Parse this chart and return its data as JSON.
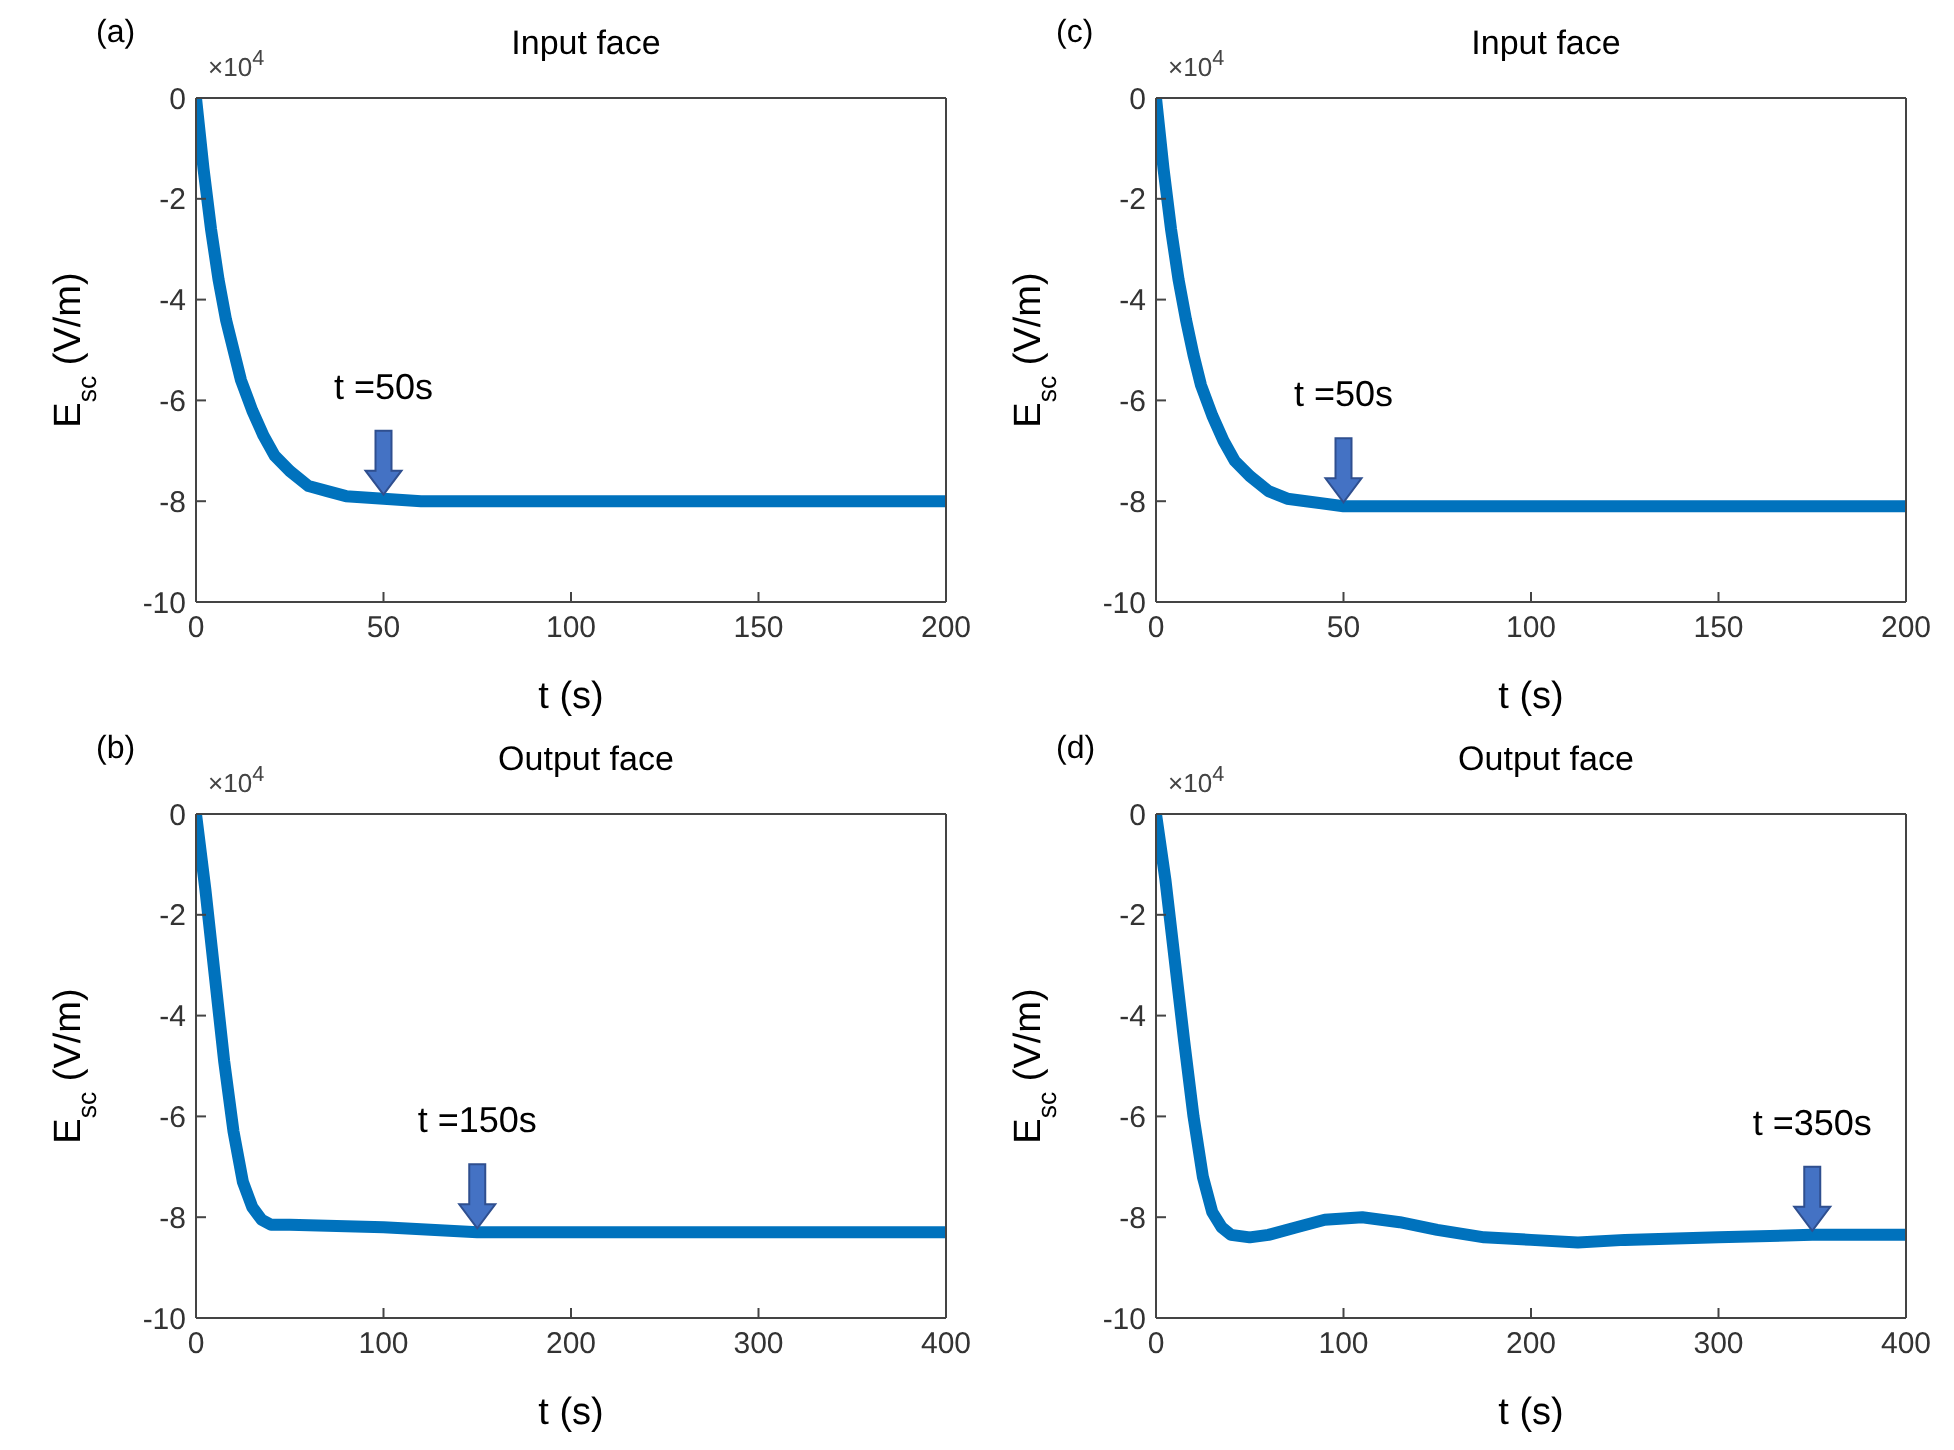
{
  "chart_data": [
    {
      "type": "line",
      "title": "Input face",
      "xlabel": "t (s)",
      "ylabel": "E$_{sc}$ (V/m)",
      "annotations": [
        "(a)",
        "×10$^{4}$",
        {
          "text": "t =50s",
          "x": 50,
          "y": -7.95
        }
      ],
      "x": [
        0,
        2,
        4,
        6,
        8,
        10,
        12,
        15,
        18,
        21,
        25,
        30,
        35,
        40,
        50,
        60,
        100,
        150,
        200
      ],
      "series": [
        {
          "color": "#0072bd",
          "values": [
            0,
            -1.4,
            -2.6,
            -3.6,
            -4.4,
            -5.0,
            -5.6,
            -6.2,
            -6.7,
            -7.1,
            -7.4,
            -7.7,
            -7.8,
            -7.9,
            -7.95,
            -8,
            -8,
            -8,
            -8
          ]
        }
      ],
      "xlim": [
        0,
        200
      ],
      "xticks": [
        0,
        50,
        100,
        150,
        200
      ],
      "ylim": [
        -10,
        0
      ],
      "yticks": [
        -10,
        -8,
        -6,
        -4,
        -2,
        0
      ]
    },
    {
      "type": "line",
      "title": "Input face",
      "xlabel": "t (s)",
      "ylabel": "E$_{sc}$ (V/m)",
      "annotations": [
        "(c)",
        "×10$^{4}$",
        {
          "text": "t =50s",
          "x": 50,
          "y": -8.1
        }
      ],
      "x": [
        0,
        2,
        4,
        6,
        8,
        10,
        12,
        15,
        18,
        21,
        25,
        30,
        35,
        40,
        50,
        60,
        100,
        150,
        200
      ],
      "series": [
        {
          "color": "#0072bd",
          "values": [
            0,
            -1.4,
            -2.6,
            -3.6,
            -4.4,
            -5.1,
            -5.7,
            -6.3,
            -6.8,
            -7.2,
            -7.5,
            -7.8,
            -7.95,
            -8.0,
            -8.1,
            -8.1,
            -8.1,
            -8.1,
            -8.1
          ]
        }
      ],
      "xlim": [
        0,
        200
      ],
      "xticks": [
        0,
        50,
        100,
        150,
        200
      ],
      "ylim": [
        -10,
        0
      ],
      "yticks": [
        -10,
        -8,
        -6,
        -4,
        -2,
        0
      ]
    },
    {
      "type": "line",
      "title": "Output face",
      "xlabel": "t (s)",
      "ylabel": "E$_{sc}$ (V/m)",
      "annotations": [
        "(b)",
        "×10$^{4}$",
        {
          "text": "t =150s",
          "x": 150,
          "y": -8.3
        }
      ],
      "x": [
        0,
        5,
        10,
        15,
        20,
        25,
        30,
        35,
        40,
        50,
        100,
        150,
        200,
        300,
        400
      ],
      "series": [
        {
          "color": "#0072bd",
          "values": [
            0,
            -1.5,
            -3.2,
            -4.9,
            -6.3,
            -7.3,
            -7.8,
            -8.05,
            -8.15,
            -8.15,
            -8.2,
            -8.3,
            -8.3,
            -8.3,
            -8.3
          ]
        }
      ],
      "xlim": [
        0,
        400
      ],
      "xticks": [
        0,
        100,
        200,
        300,
        400
      ],
      "ylim": [
        -10,
        0
      ],
      "yticks": [
        -10,
        -8,
        -6,
        -4,
        -2,
        0
      ]
    },
    {
      "type": "line",
      "title": "Output face",
      "xlabel": "t (s)",
      "ylabel": "E$_{sc}$ (V/m)",
      "annotations": [
        "(d)",
        "×10$^{4}$",
        {
          "text": "t =350s",
          "x": 350,
          "y": -8.35
        }
      ],
      "x": [
        0,
        5,
        10,
        15,
        20,
        25,
        30,
        35,
        40,
        50,
        60,
        75,
        90,
        110,
        130,
        150,
        175,
        200,
        225,
        250,
        300,
        350,
        400
      ],
      "series": [
        {
          "color": "#0072bd",
          "values": [
            0,
            -1.3,
            -2.9,
            -4.5,
            -6.0,
            -7.2,
            -7.9,
            -8.2,
            -8.35,
            -8.4,
            -8.35,
            -8.2,
            -8.05,
            -8.0,
            -8.1,
            -8.25,
            -8.4,
            -8.45,
            -8.5,
            -8.45,
            -8.4,
            -8.35,
            -8.35
          ]
        }
      ],
      "xlim": [
        0,
        400
      ],
      "xticks": [
        0,
        100,
        200,
        300,
        400
      ],
      "ylim": [
        -10,
        0
      ],
      "yticks": [
        -10,
        -8,
        -6,
        -4,
        -2,
        0
      ]
    }
  ]
}
